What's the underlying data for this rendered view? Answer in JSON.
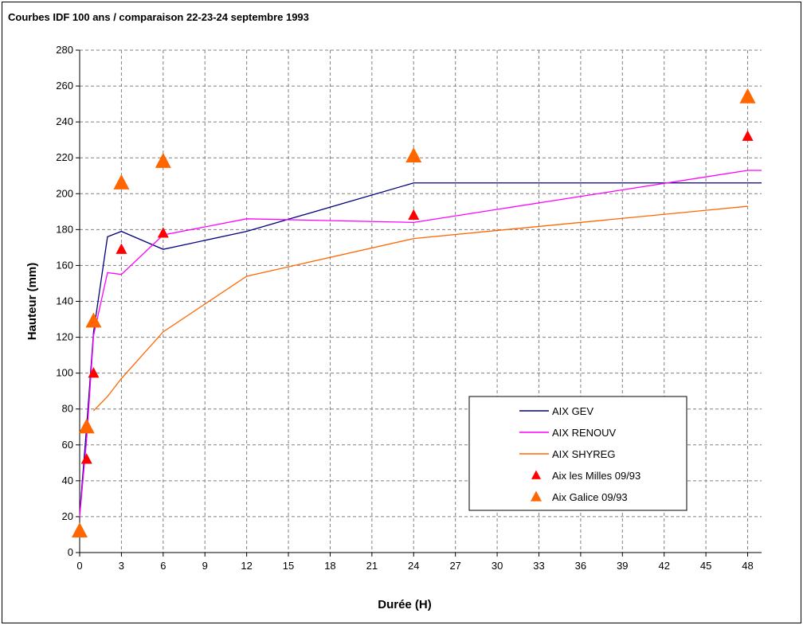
{
  "chart_data": {
    "type": "line",
    "title": "Courbes IDF 100 ans / comparaison 22-23-24 septembre 1993",
    "xlabel": "Durée (H)",
    "ylabel": "Hauteur (mm)",
    "xlim": [
      0,
      49
    ],
    "ylim": [
      0,
      280
    ],
    "xticks": [
      0,
      3,
      6,
      9,
      12,
      15,
      18,
      21,
      24,
      27,
      30,
      33,
      36,
      39,
      42,
      45,
      48
    ],
    "yticks": [
      0,
      20,
      40,
      60,
      80,
      100,
      120,
      140,
      160,
      180,
      200,
      220,
      240,
      260,
      280
    ],
    "grid": true,
    "legend_position": "bottom-right",
    "series": [
      {
        "name": "AIX GEV",
        "kind": "line",
        "color": "#000080",
        "x": [
          0,
          0.5,
          1,
          2,
          3,
          6,
          12,
          24,
          48,
          49
        ],
        "y": [
          21,
          70,
          123,
          176,
          179,
          169,
          179,
          206,
          206,
          206
        ]
      },
      {
        "name": "AIX RENOUV",
        "kind": "line",
        "color": "#ff00ff",
        "x": [
          0,
          0.5,
          1,
          2,
          3,
          6,
          12,
          24,
          48,
          49
        ],
        "y": [
          20,
          63,
          121,
          156,
          155,
          177,
          186,
          184,
          213,
          213
        ]
      },
      {
        "name": "AIX SHYREG",
        "kind": "line",
        "color": "#ff6600",
        "x": [
          1,
          2,
          3,
          6,
          12,
          24,
          48
        ],
        "y": [
          79,
          87,
          97,
          123,
          154,
          175,
          193
        ]
      },
      {
        "name": "Aix les Milles 09/93",
        "kind": "scatter",
        "marker": "triangle",
        "color": "#ff0000",
        "x": [
          0.5,
          1,
          3,
          6,
          24,
          48
        ],
        "y": [
          52,
          100,
          169,
          178,
          188,
          232
        ]
      },
      {
        "name": "Aix Galice 09/93",
        "kind": "scatter",
        "marker": "triangle",
        "color": "#ff6600",
        "x": [
          0,
          0.5,
          1,
          3,
          6,
          24,
          48
        ],
        "y": [
          12,
          70,
          129,
          206,
          218,
          221,
          254
        ]
      }
    ]
  }
}
